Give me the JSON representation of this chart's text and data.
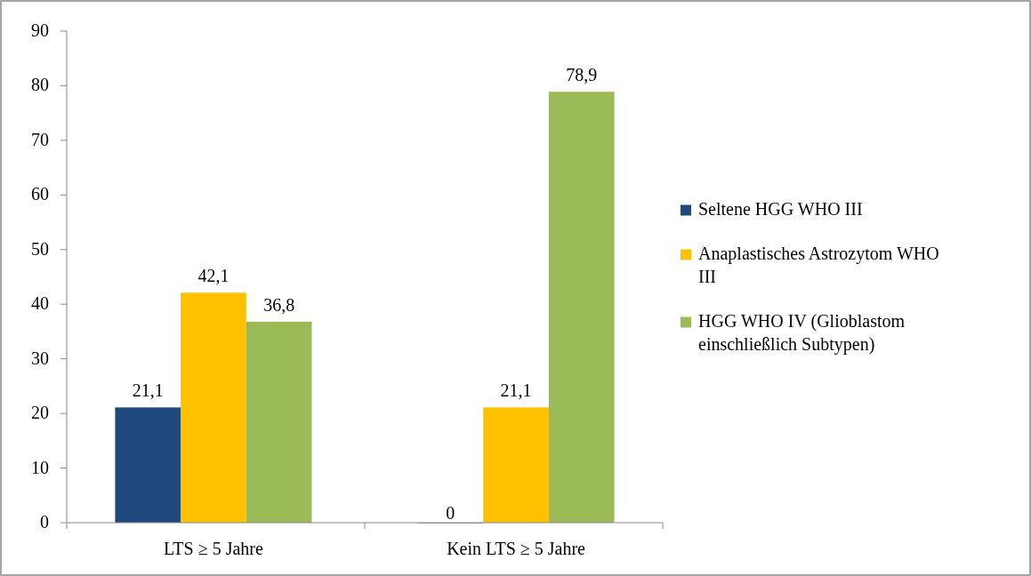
{
  "chart_data": {
    "type": "bar",
    "categories": [
      "LTS ≥ 5 Jahre",
      "Kein LTS ≥ 5 Jahre"
    ],
    "series": [
      {
        "name": "Seltene HGG WHO III",
        "color": "#1f497d",
        "values": [
          21.1,
          0
        ],
        "value_labels": [
          "21,1",
          "0"
        ]
      },
      {
        "name": "Anaplastisches Astrozytom WHO III",
        "color": "#ffc000",
        "values": [
          42.1,
          21.1
        ],
        "value_labels": [
          "42,1",
          "21,1"
        ]
      },
      {
        "name": "HGG WHO IV (Glioblastom einschließlich Subtypen)",
        "color": "#9bbb59",
        "values": [
          36.8,
          78.9
        ],
        "value_labels": [
          "36,8",
          "78,9"
        ]
      }
    ],
    "ylim": [
      0,
      90
    ],
    "yticks": [
      0,
      10,
      20,
      30,
      40,
      50,
      60,
      70,
      80,
      90
    ],
    "grid": false,
    "legend": "right"
  }
}
